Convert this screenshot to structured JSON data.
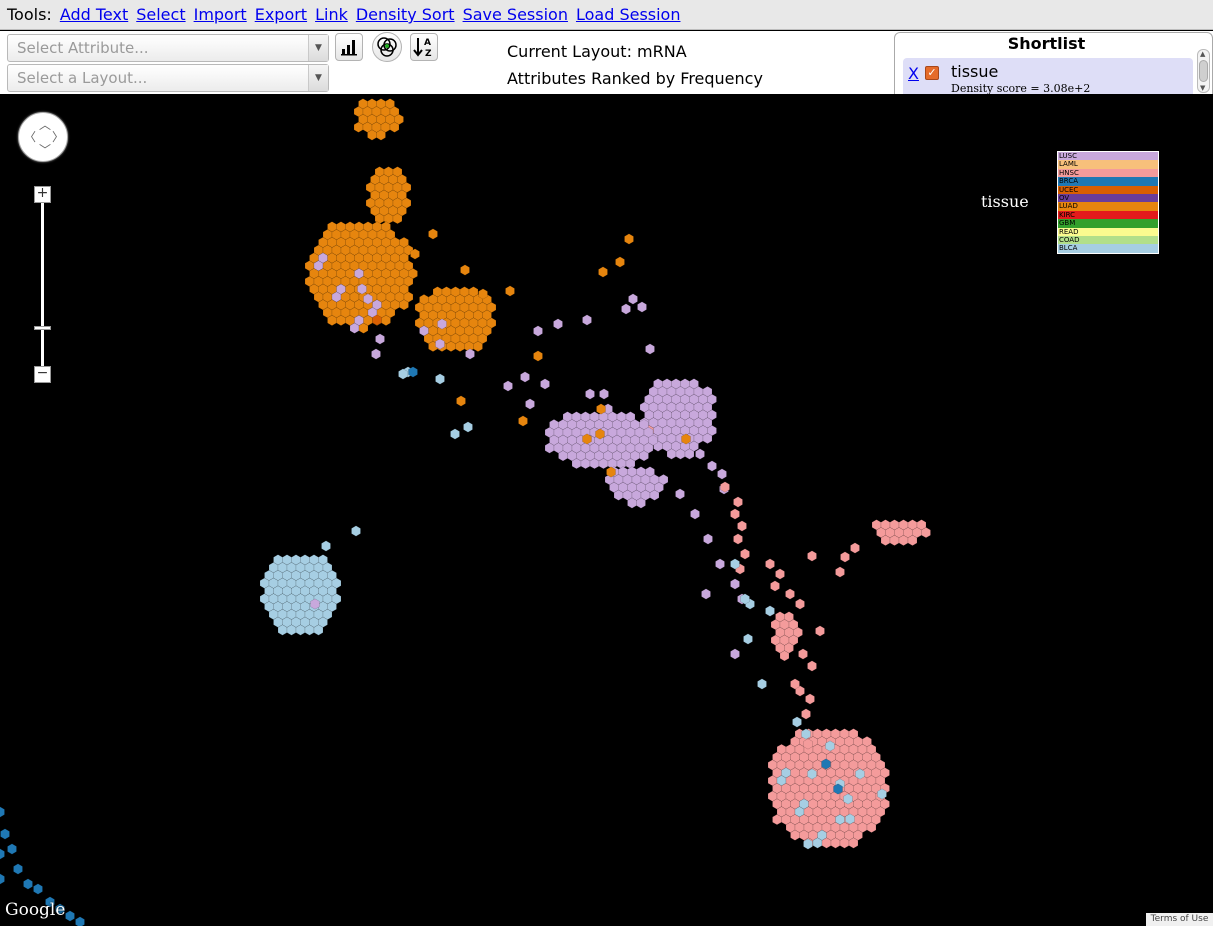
{
  "menu": {
    "label": "Tools:",
    "items": [
      "Add Text",
      "Select",
      "Import",
      "Export",
      "Link",
      "Density Sort",
      "Save Session",
      "Load Session"
    ]
  },
  "controls": {
    "attribute_placeholder": "Select Attribute...",
    "layout_placeholder": "Select a Layout...",
    "current_layout": "Current Layout: mRNA",
    "ranking": "Attributes Ranked by Frequency"
  },
  "shortlist": {
    "title": "Shortlist",
    "remove_label": "X",
    "entry_name": "tissue",
    "entry_score": "Density score = 3.08e+2"
  },
  "map": {
    "legend_title": "tissue",
    "legend": [
      {
        "name": "LUSC",
        "color": "#c8a8dc"
      },
      {
        "name": "LAML",
        "color": "#f7c07b"
      },
      {
        "name": "HNSC",
        "color": "#f49b9b"
      },
      {
        "name": "BRCA",
        "color": "#1f78b4"
      },
      {
        "name": "UCEC",
        "color": "#d95f02"
      },
      {
        "name": "OV",
        "color": "#6a3d9a"
      },
      {
        "name": "LUAD",
        "color": "#e6850e"
      },
      {
        "name": "KIRC",
        "color": "#e31a1c"
      },
      {
        "name": "GBM",
        "color": "#33a02c"
      },
      {
        "name": "READ",
        "color": "#fbfb8f"
      },
      {
        "name": "COAD",
        "color": "#b2df8a"
      },
      {
        "name": "BLCA",
        "color": "#a6cee3"
      }
    ],
    "google_logo": "Google",
    "terms": "Terms of Use"
  }
}
